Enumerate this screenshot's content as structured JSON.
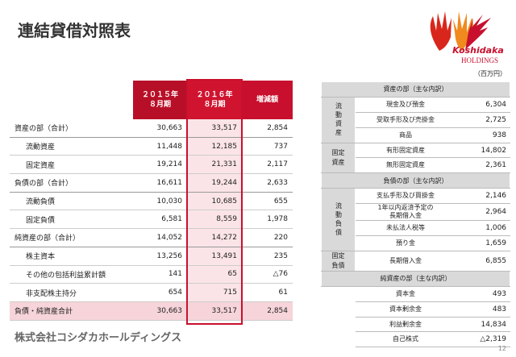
{
  "header": {
    "title": "連結貸借対照表",
    "logo": {
      "name": "Koshidaka",
      "sub": "HOLDINGS"
    }
  },
  "summary_table": {
    "columns": [
      [
        "２０１５年",
        "８月期"
      ],
      [
        "２０１６年",
        "８月期"
      ],
      [
        "増減額"
      ]
    ],
    "rows": [
      {
        "label": "資産の部（合計）",
        "values": [
          "30,663",
          "33,517",
          "2,854"
        ],
        "children": [
          {
            "label": "流動資産",
            "values": [
              "11,448",
              "12,185",
              "737"
            ]
          },
          {
            "label": "固定資産",
            "values": [
              "19,214",
              "21,331",
              "2,117"
            ]
          }
        ]
      },
      {
        "label": "負債の部（合計）",
        "values": [
          "16,611",
          "19,244",
          "2,633"
        ],
        "children": [
          {
            "label": "流動負債",
            "values": [
              "10,030",
              "10,685",
              "655"
            ]
          },
          {
            "label": "固定負債",
            "values": [
              "6,581",
              "8,559",
              "1,978"
            ]
          }
        ]
      },
      {
        "label": "純資産の部（合計）",
        "values": [
          "14,052",
          "14,272",
          "220"
        ],
        "children": [
          {
            "label": "株主資本",
            "values": [
              "13,256",
              "13,491",
              "235"
            ]
          },
          {
            "label": "その他の包括利益累計額",
            "values": [
              "141",
              "65",
              "△76"
            ]
          },
          {
            "label": "非支配株主持分",
            "values": [
              "654",
              "715",
              "61"
            ]
          }
        ]
      },
      {
        "label": "負債・純資産合計",
        "values": [
          "30,663",
          "33,517",
          "2,854"
        ]
      }
    ]
  },
  "breakdown": {
    "unit": "（百万円）",
    "sections": [
      {
        "title": "資産の部（主な内訳）",
        "groups": [
          {
            "label": "流動資産",
            "items": [
              {
                "name": "現金及び預金",
                "value": "6,304"
              },
              {
                "name": "受取手形及び売掛金",
                "value": "2,725"
              },
              {
                "name": "商品",
                "value": "938"
              }
            ]
          },
          {
            "label": "固定資産",
            "items": [
              {
                "name": "有形固定資産",
                "value": "14,802"
              },
              {
                "name": "無形固定資産",
                "value": "2,361"
              }
            ]
          }
        ]
      },
      {
        "title": "負債の部（主な内訳）",
        "groups": [
          {
            "label": "流動負債",
            "items": [
              {
                "name": "支払手形及び買掛金",
                "value": "2,146"
              },
              {
                "name": "1年以内返済予定の長期借入金",
                "value": "2,964"
              },
              {
                "name": "未払法人税等",
                "value": "1,006"
              },
              {
                "name": "預り金",
                "value": "1,659"
              }
            ]
          },
          {
            "label": "固定負債",
            "items": [
              {
                "name": "長期借入金",
                "value": "6,855"
              }
            ]
          }
        ]
      },
      {
        "title": "純資産の部（主な内訳）",
        "groups": [
          {
            "items": [
              {
                "name": "資本金",
                "value": "493"
              },
              {
                "name": "資本剰余金",
                "value": "483"
              },
              {
                "name": "利益剰余金",
                "value": "14,834"
              },
              {
                "name": "自己株式",
                "value": "△2,319"
              }
            ]
          }
        ]
      }
    ]
  },
  "footer": {
    "company": "株式会社コシダカホールディングス",
    "page": "12"
  }
}
